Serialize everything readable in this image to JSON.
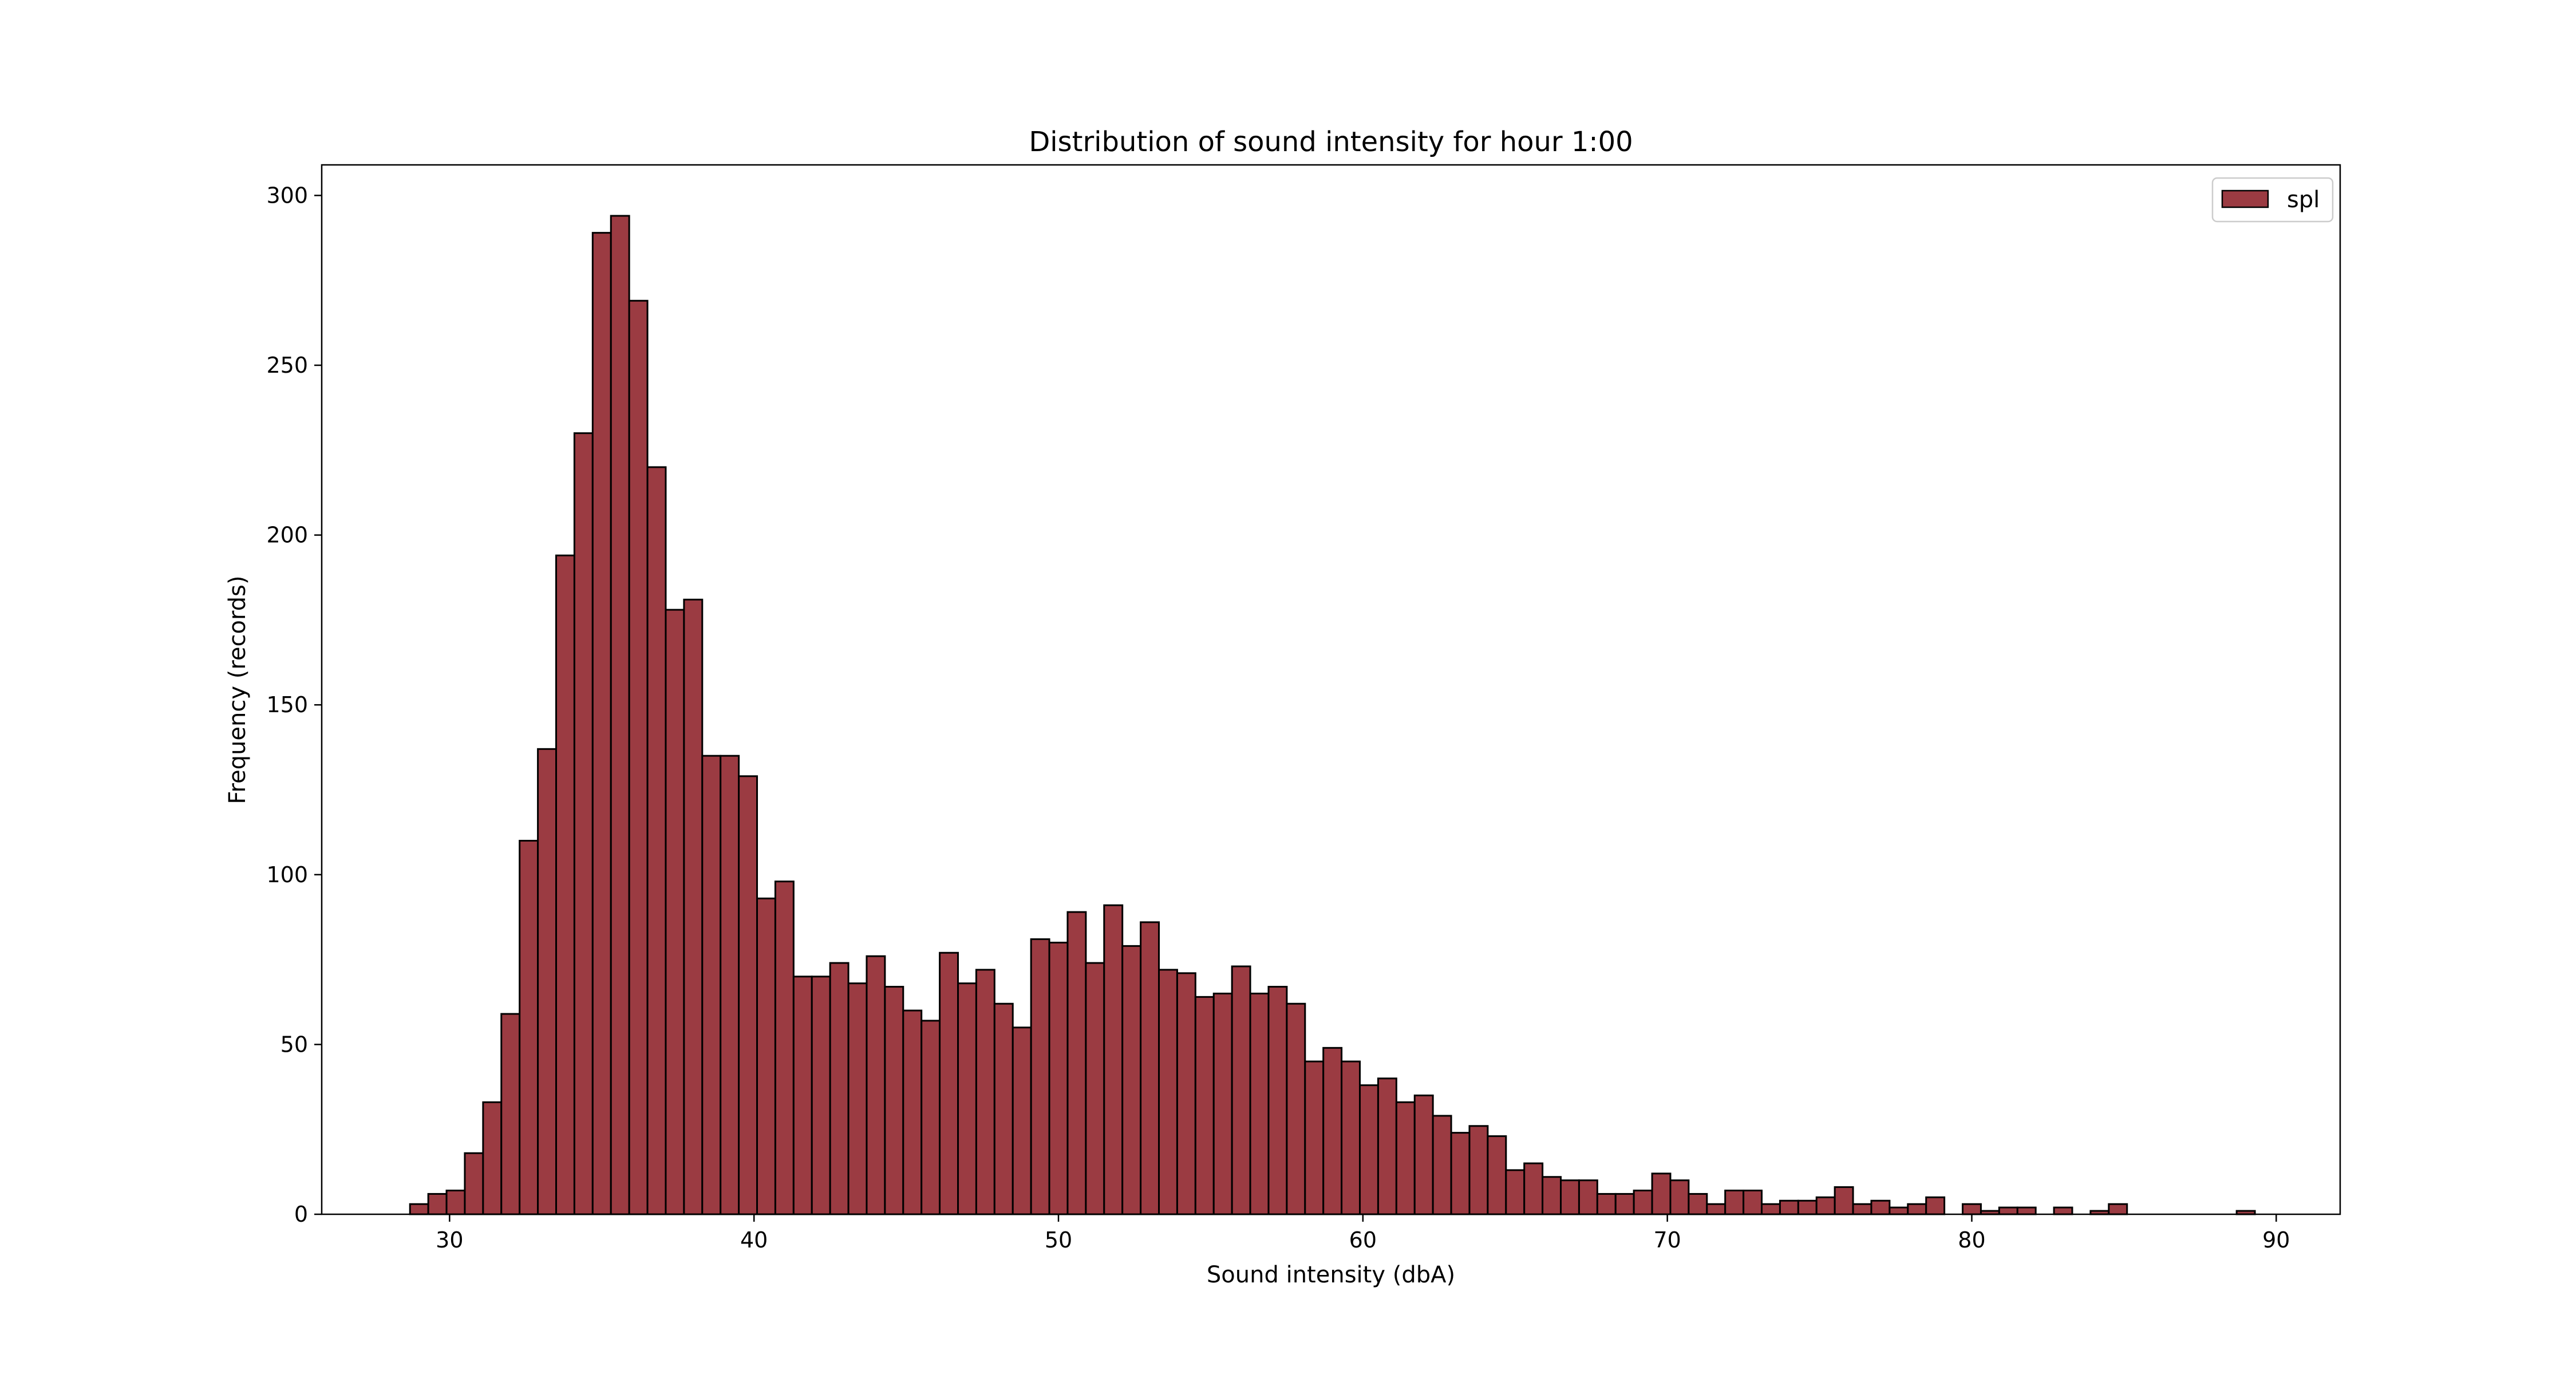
{
  "chart_data": {
    "type": "bar",
    "title": "Distribution of sound intensity for hour 1:00",
    "xlabel": "Sound intensity (dbA)",
    "ylabel": "Frequency (records)",
    "xlim": [
      25.8,
      92.1
    ],
    "ylim": [
      0,
      309
    ],
    "xticks": [
      30,
      40,
      50,
      60,
      70,
      80,
      90
    ],
    "yticks": [
      0,
      50,
      100,
      150,
      200,
      250,
      300
    ],
    "bin_start": 28.7,
    "bin_width": 0.6,
    "legend": {
      "position": "top-right",
      "entries": [
        "spl"
      ]
    },
    "colors": {
      "bar_fill": "#9b3b42",
      "bar_edge": "#000000"
    },
    "series": [
      {
        "name": "spl",
        "values": [
          3,
          6,
          7,
          18,
          33,
          59,
          110,
          137,
          194,
          230,
          289,
          294,
          269,
          220,
          178,
          181,
          135,
          135,
          129,
          93,
          98,
          70,
          70,
          74,
          68,
          76,
          67,
          60,
          57,
          77,
          68,
          72,
          62,
          55,
          81,
          80,
          89,
          74,
          91,
          79,
          86,
          72,
          71,
          64,
          65,
          73,
          65,
          67,
          62,
          45,
          49,
          45,
          38,
          40,
          33,
          35,
          29,
          24,
          26,
          23,
          13,
          15,
          11,
          10,
          10,
          6,
          6,
          7,
          12,
          10,
          6,
          3,
          7,
          7,
          3,
          4,
          4,
          5,
          8,
          3,
          4,
          2,
          3,
          5,
          0,
          3,
          1,
          2,
          2,
          0,
          2,
          0,
          1,
          3,
          0,
          0,
          0,
          0,
          0,
          0,
          1
        ]
      }
    ]
  }
}
